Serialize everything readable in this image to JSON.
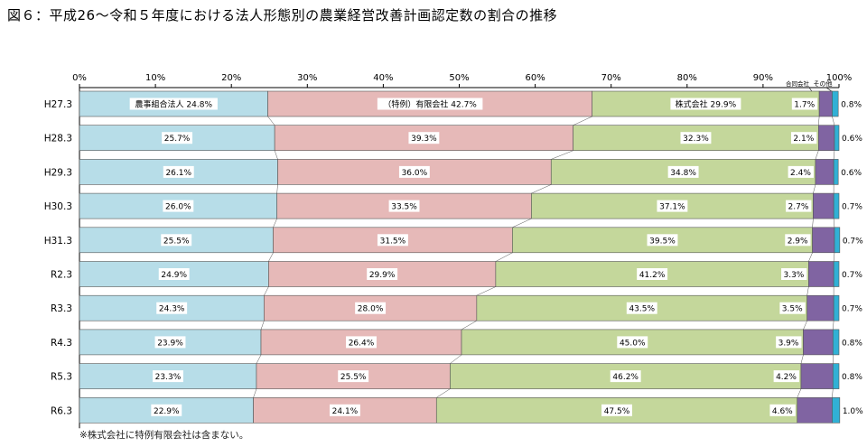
{
  "title": "図６：平成26〜令和５年度における法人形態別の農業経営改善計画認定数の割合の推移",
  "footnote": "※株式会社に特例有限会社は含まない。",
  "chart_data": {
    "type": "bar",
    "orientation": "horizontal",
    "stacked": true,
    "percent": true,
    "xlim": [
      0,
      100
    ],
    "xticks": [
      "0%",
      "10%",
      "20%",
      "30%",
      "40%",
      "50%",
      "60%",
      "70%",
      "80%",
      "90%",
      "100%"
    ],
    "categories": [
      "H27.3",
      "H28.3",
      "H29.3",
      "H30.3",
      "H31.3",
      "R2.3",
      "R3.3",
      "R4.3",
      "R5.3",
      "R6.3"
    ],
    "grid": false,
    "series": [
      {
        "name": "農事組合法人",
        "color": "#b7dde8",
        "values": [
          24.8,
          25.7,
          26.1,
          26.0,
          25.5,
          24.9,
          24.3,
          23.9,
          23.3,
          22.9
        ],
        "labels": [
          "農事組合法人 24.8%",
          "25.7%",
          "26.1%",
          "26.0%",
          "25.5%",
          "24.9%",
          "24.3%",
          "23.9%",
          "23.3%",
          "22.9%"
        ]
      },
      {
        "name": "（特例）有限会社",
        "color": "#e6b9b8",
        "values": [
          42.7,
          39.3,
          36.0,
          33.5,
          31.5,
          29.9,
          28.0,
          26.4,
          25.5,
          24.1
        ],
        "labels": [
          "（特例）有限会社 42.7%",
          "39.3%",
          "36.0%",
          "33.5%",
          "31.5%",
          "29.9%",
          "28.0%",
          "26.4%",
          "25.5%",
          "24.1%"
        ]
      },
      {
        "name": "株式会社",
        "color": "#c4d79b",
        "values": [
          29.9,
          32.3,
          34.8,
          37.1,
          39.5,
          41.2,
          43.5,
          45.0,
          46.2,
          47.5
        ],
        "labels": [
          "株式会社 29.9%",
          "32.3%",
          "34.8%",
          "37.1%",
          "39.5%",
          "41.2%",
          "43.5%",
          "45.0%",
          "46.2%",
          "47.5%"
        ]
      },
      {
        "name": "合同会社",
        "color": "#8064a2",
        "values": [
          1.7,
          2.1,
          2.4,
          2.7,
          2.9,
          3.3,
          3.5,
          3.9,
          4.2,
          4.6
        ],
        "labels": [
          "1.7%",
          "2.1%",
          "2.4%",
          "2.7%",
          "2.9%",
          "3.3%",
          "3.5%",
          "3.9%",
          "4.2%",
          "4.6%"
        ]
      },
      {
        "name": "その他",
        "color": "#31b0d5",
        "values": [
          0.8,
          0.6,
          0.6,
          0.7,
          0.7,
          0.7,
          0.7,
          0.8,
          0.8,
          1.0
        ],
        "labels": [
          "0.8%",
          "0.6%",
          "0.6%",
          "0.7%",
          "0.7%",
          "0.7%",
          "0.7%",
          "0.8%",
          "0.8%",
          "1.0%"
        ]
      }
    ],
    "legend": "inline labels (合同会社, その他 above top-right)"
  }
}
